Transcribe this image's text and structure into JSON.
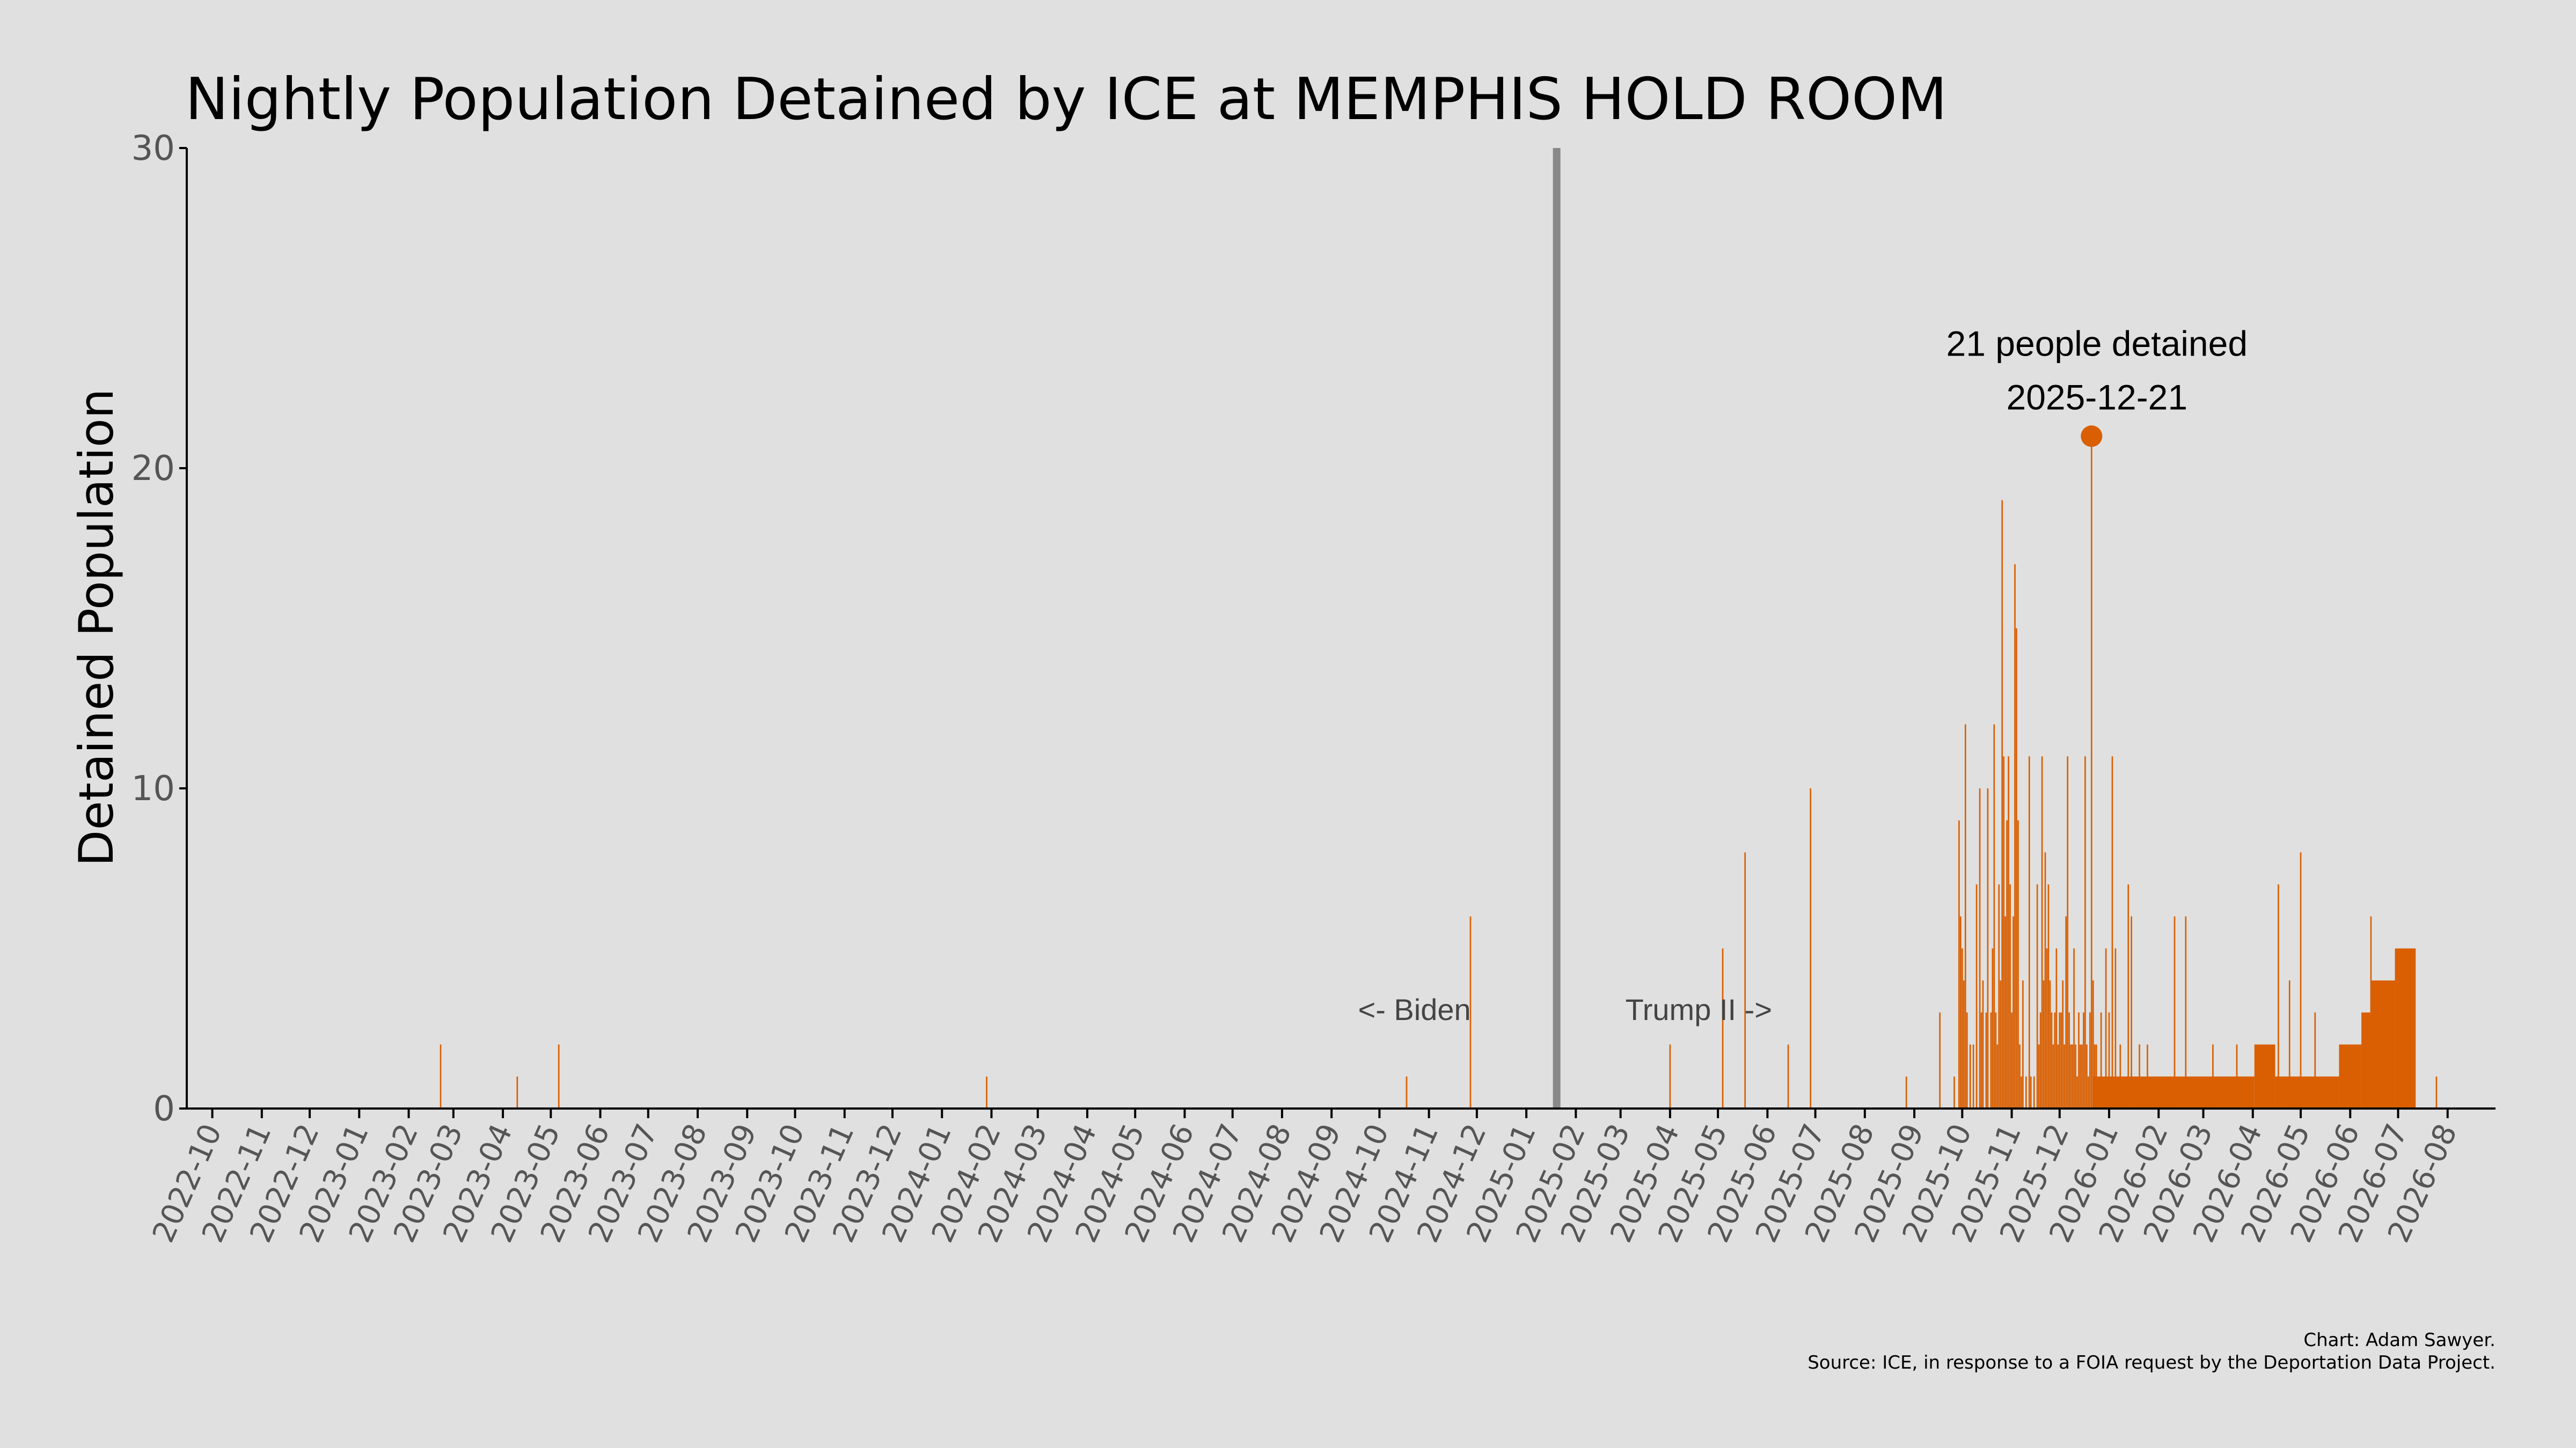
{
  "colors": {
    "background": "#e0e0e0",
    "bar": "#d95f02",
    "divider": "#888888",
    "axis": "#000000",
    "tick_label": "#555555"
  },
  "chart_data": {
    "type": "bar",
    "title": "Nightly Population Detained by ICE at MEMPHIS HOLD ROOM",
    "xlabel": "",
    "ylabel": "Detained Population",
    "ylim": [
      0,
      30
    ],
    "yticks": [
      0,
      10,
      20,
      30
    ],
    "xlim": [
      "2022-09-15",
      "2026-08-31"
    ],
    "grid": false,
    "x_tick_labels": [
      "2022-10",
      "2022-11",
      "2022-12",
      "2023-01",
      "2023-02",
      "2023-03",
      "2023-04",
      "2023-05",
      "2023-06",
      "2023-07",
      "2023-08",
      "2023-09",
      "2023-10",
      "2023-11",
      "2023-12",
      "2024-01",
      "2024-02",
      "2024-03",
      "2024-04",
      "2024-05",
      "2024-06",
      "2024-07",
      "2024-08",
      "2024-09",
      "2024-10",
      "2024-11",
      "2024-12",
      "2025-01",
      "2025-02",
      "2025-03",
      "2025-04",
      "2025-05",
      "2025-06",
      "2025-07",
      "2025-08",
      "2025-09",
      "2025-10",
      "2025-11",
      "2025-12",
      "2026-01",
      "2026-02",
      "2026-03",
      "2026-04",
      "2026-05",
      "2026-06",
      "2026-07",
      "2026-08"
    ],
    "spikes": [
      [
        "2023-02-21",
        2
      ],
      [
        "2023-04-10",
        1
      ],
      [
        "2023-05-06",
        2
      ],
      [
        "2024-01-29",
        1
      ],
      [
        "2024-10-18",
        1
      ],
      [
        "2024-11-27",
        6
      ],
      [
        "2025-04-01",
        2
      ],
      [
        "2025-05-04",
        5
      ],
      [
        "2025-05-18",
        8
      ],
      [
        "2025-06-14",
        2
      ],
      [
        "2025-06-28",
        10
      ],
      [
        "2025-08-27",
        1
      ],
      [
        "2025-09-17",
        3
      ],
      [
        "2025-09-26",
        1
      ],
      [
        "2025-09-29",
        9
      ],
      [
        "2025-09-30",
        6
      ],
      [
        "2025-10-01",
        5
      ],
      [
        "2025-10-02",
        4
      ],
      [
        "2025-10-03",
        12
      ],
      [
        "2025-10-04",
        3
      ],
      [
        "2025-10-06",
        2
      ],
      [
        "2025-10-08",
        2
      ],
      [
        "2025-10-10",
        7
      ],
      [
        "2025-10-12",
        10
      ],
      [
        "2025-10-13",
        3
      ],
      [
        "2025-10-14",
        4
      ],
      [
        "2025-10-16",
        3
      ],
      [
        "2025-10-17",
        10
      ],
      [
        "2025-10-19",
        3
      ],
      [
        "2025-10-20",
        5
      ],
      [
        "2025-10-21",
        12
      ],
      [
        "2025-10-22",
        3
      ],
      [
        "2025-10-23",
        2
      ],
      [
        "2025-10-24",
        7
      ],
      [
        "2025-10-25",
        4
      ],
      [
        "2025-10-26",
        19
      ],
      [
        "2025-10-27",
        11
      ],
      [
        "2025-10-28",
        6
      ],
      [
        "2025-10-29",
        9
      ],
      [
        "2025-10-30",
        11
      ],
      [
        "2025-10-31",
        7
      ],
      [
        "2025-11-01",
        3
      ],
      [
        "2025-11-02",
        6
      ],
      [
        "2025-11-03",
        17
      ],
      [
        "2025-11-04",
        15
      ],
      [
        "2025-11-05",
        9
      ],
      [
        "2025-11-06",
        2
      ],
      [
        "2025-11-07",
        1
      ],
      [
        "2025-11-08",
        4
      ],
      [
        "2025-11-10",
        1
      ],
      [
        "2025-11-12",
        11
      ],
      [
        "2025-11-13",
        1
      ],
      [
        "2025-11-15",
        1
      ],
      [
        "2025-11-17",
        7
      ],
      [
        "2025-11-18",
        2
      ],
      [
        "2025-11-19",
        3
      ],
      [
        "2025-11-20",
        11
      ],
      [
        "2025-11-21",
        4
      ],
      [
        "2025-11-22",
        8
      ],
      [
        "2025-11-23",
        5
      ],
      [
        "2025-11-24",
        7
      ],
      [
        "2025-11-25",
        4
      ],
      [
        "2025-11-26",
        3
      ],
      [
        "2025-11-27",
        2
      ],
      [
        "2025-11-28",
        3
      ],
      [
        "2025-11-29",
        5
      ],
      [
        "2025-11-30",
        2
      ],
      [
        "2025-12-01",
        3
      ],
      [
        "2025-12-02",
        3
      ],
      [
        "2025-12-03",
        4
      ],
      [
        "2025-12-04",
        2
      ],
      [
        "2025-12-05",
        6
      ],
      [
        "2025-12-06",
        11
      ],
      [
        "2025-12-07",
        3
      ],
      [
        "2025-12-08",
        2
      ],
      [
        "2025-12-09",
        2
      ],
      [
        "2025-12-10",
        5
      ],
      [
        "2025-12-11",
        2
      ],
      [
        "2025-12-12",
        1
      ],
      [
        "2025-12-13",
        3
      ],
      [
        "2025-12-14",
        2
      ],
      [
        "2025-12-15",
        2
      ],
      [
        "2025-12-16",
        3
      ],
      [
        "2025-12-17",
        11
      ],
      [
        "2025-12-18",
        2
      ],
      [
        "2025-12-19",
        1
      ],
      [
        "2025-12-20",
        3
      ],
      [
        "2025-12-21",
        21
      ],
      [
        "2025-12-22",
        4
      ],
      [
        "2025-12-23",
        2
      ],
      [
        "2025-12-24",
        2
      ],
      [
        "2025-12-27",
        3
      ],
      [
        "2025-12-30",
        5
      ],
      [
        "2026-01-01",
        3
      ],
      [
        "2026-01-03",
        11
      ],
      [
        "2026-01-05",
        5
      ],
      [
        "2026-01-08",
        2
      ],
      [
        "2026-01-13",
        7
      ],
      [
        "2026-01-15",
        6
      ],
      [
        "2026-01-20",
        2
      ],
      [
        "2026-01-25",
        2
      ],
      [
        "2026-02-11",
        6
      ],
      [
        "2026-02-18",
        6
      ],
      [
        "2026-03-07",
        2
      ],
      [
        "2026-03-22",
        2
      ],
      [
        "2026-04-17",
        7
      ],
      [
        "2026-04-24",
        4
      ],
      [
        "2026-05-01",
        8
      ],
      [
        "2026-05-10",
        3
      ],
      [
        "2026-06-14",
        6
      ],
      [
        "2026-07-25",
        1
      ]
    ],
    "steps": [
      [
        "2025-12-22",
        "2026-04-02",
        1
      ],
      [
        "2026-04-02",
        "2026-04-15",
        2
      ],
      [
        "2026-04-15",
        "2026-05-25",
        1
      ],
      [
        "2026-05-25",
        "2026-06-08",
        2
      ],
      [
        "2026-06-08",
        "2026-06-14",
        3
      ],
      [
        "2026-06-14",
        "2026-06-29",
        4
      ],
      [
        "2026-06-29",
        "2026-07-12",
        5
      ]
    ],
    "administration_change": "2025-01-20",
    "era_labels": {
      "left": "<- Biden",
      "right": "Trump II ->"
    },
    "highlight": {
      "date": "2025-12-21",
      "value": 21,
      "label_line1": "21 people detained",
      "label_line2": "2025-12-21"
    }
  },
  "caption": {
    "line1": "Chart: Adam Sawyer.",
    "line2": "Source: ICE, in response to a FOIA request by the Deportation Data Project."
  }
}
